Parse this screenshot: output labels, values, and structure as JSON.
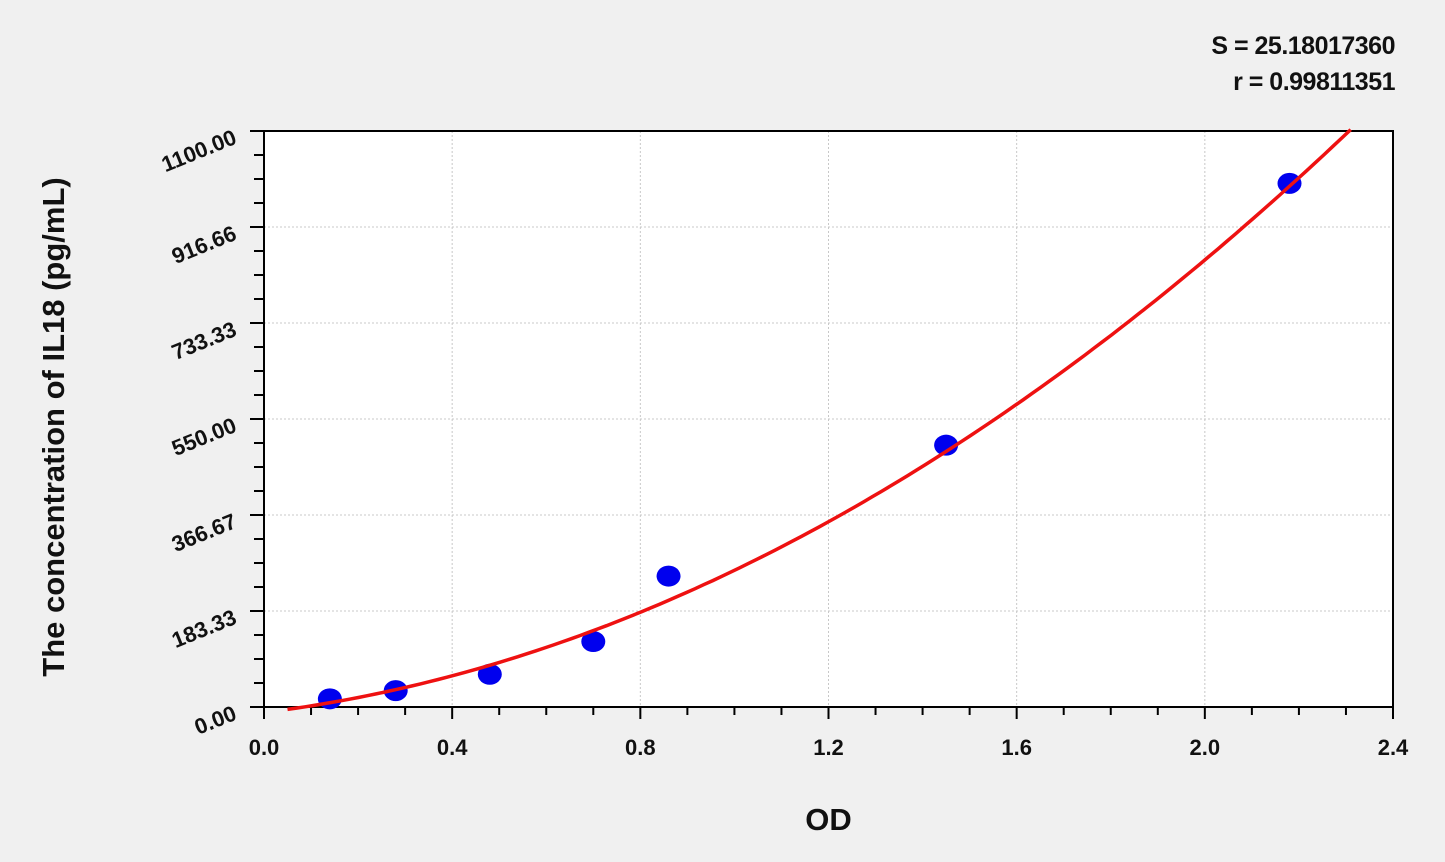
{
  "chart_data": {
    "type": "scatter",
    "title": "",
    "xlabel": "OD",
    "ylabel": "The concentration of IL18 (pg/mL)",
    "xlim": [
      0,
      2.4
    ],
    "ylim": [
      0,
      1100
    ],
    "x_ticks": [
      "0.0",
      "0.4",
      "0.8",
      "1.2",
      "1.6",
      "2.0",
      "2.4"
    ],
    "y_ticks": [
      "0.00",
      "183.33",
      "366.67",
      "550.00",
      "733.33",
      "916.66",
      "1100.00"
    ],
    "grid": true,
    "annotations": [
      "S = 25.18017360",
      "r = 0.99811351"
    ],
    "points": {
      "color": "#0000ee",
      "x": [
        0.14,
        0.28,
        0.48,
        0.7,
        0.86,
        1.45,
        2.18
      ],
      "y": [
        15.6,
        31.25,
        62.5,
        125,
        250,
        500,
        1000
      ]
    },
    "fit_curve": {
      "color": "#ee1111",
      "x": [
        0.05,
        0.1,
        0.2,
        0.3,
        0.4,
        0.5,
        0.6,
        0.7,
        0.8,
        0.9,
        1.0,
        1.1,
        1.2,
        1.3,
        1.4,
        1.5,
        1.6,
        1.7,
        1.8,
        1.9,
        2.0,
        2.1,
        2.2,
        2.31
      ],
      "y": [
        -7.3,
        0,
        17.0,
        37.0,
        60.1,
        86.6,
        116.1,
        148.8,
        184.5,
        223.5,
        265.5,
        310.5,
        359,
        410.8,
        404.4,
        522.3,
        587.6,
        648.1,
        713.2,
        780.9,
        858,
        930,
        1005,
        1106
      ]
    }
  }
}
